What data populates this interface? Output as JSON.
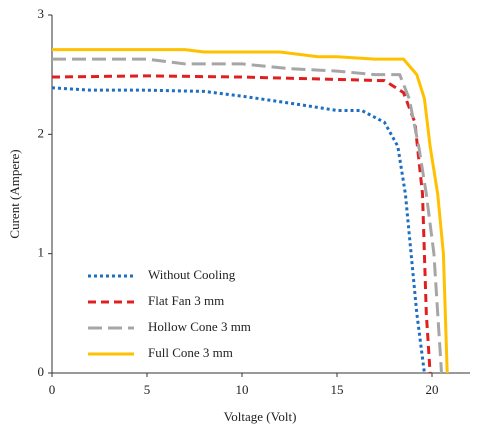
{
  "chart_data": {
    "type": "line",
    "x_label": "Voltage (Volt)",
    "y_label": "Curent (Ampere)",
    "xlim": [
      0,
      22
    ],
    "xticks": [
      0,
      5,
      10,
      15,
      20
    ],
    "ylim": [
      0,
      3
    ],
    "yticks": [
      0,
      1,
      2,
      3
    ],
    "legend": "lower-left",
    "series": [
      {
        "name": "Without Cooling",
        "color": "#1f6fc0",
        "style": "dotted",
        "x": [
          0,
          2,
          5,
          8,
          10,
          13,
          15,
          16.3,
          17.5,
          18.2,
          18.6,
          18.9,
          19.2,
          19.6
        ],
        "values": [
          2.39,
          2.37,
          2.37,
          2.36,
          2.32,
          2.25,
          2.2,
          2.2,
          2.1,
          1.9,
          1.5,
          1.0,
          0.5,
          0
        ]
      },
      {
        "name": "Flat Fan 3 mm",
        "color": "#e02020",
        "style": "dashed",
        "x": [
          0,
          5,
          10,
          15,
          17.5,
          18.5,
          19.1,
          19.5,
          19.6,
          19.7,
          19.9
        ],
        "values": [
          2.48,
          2.49,
          2.48,
          2.46,
          2.45,
          2.35,
          2.1,
          1.5,
          1.0,
          0.5,
          0
        ]
      },
      {
        "name": "Hollow Cone 3 mm",
        "color": "#a6a6a6",
        "style": "longdash",
        "x": [
          0,
          5,
          7,
          10,
          12.5,
          15,
          17,
          18.3,
          18.8,
          19.3,
          19.7,
          20.1,
          20.3,
          20.5
        ],
        "values": [
          2.63,
          2.63,
          2.59,
          2.59,
          2.55,
          2.53,
          2.5,
          2.5,
          2.3,
          1.9,
          1.5,
          1.0,
          0.5,
          0
        ]
      },
      {
        "name": "Full Cone 3 mm",
        "color": "#ffc000",
        "style": "solid",
        "x": [
          0,
          7,
          8,
          12,
          14,
          15,
          17,
          18.5,
          19.2,
          19.6,
          19.9,
          20.3,
          20.6,
          20.7,
          20.8
        ],
        "values": [
          2.71,
          2.71,
          2.69,
          2.69,
          2.65,
          2.65,
          2.63,
          2.63,
          2.5,
          2.3,
          1.9,
          1.5,
          1.0,
          0.5,
          0
        ]
      }
    ]
  }
}
